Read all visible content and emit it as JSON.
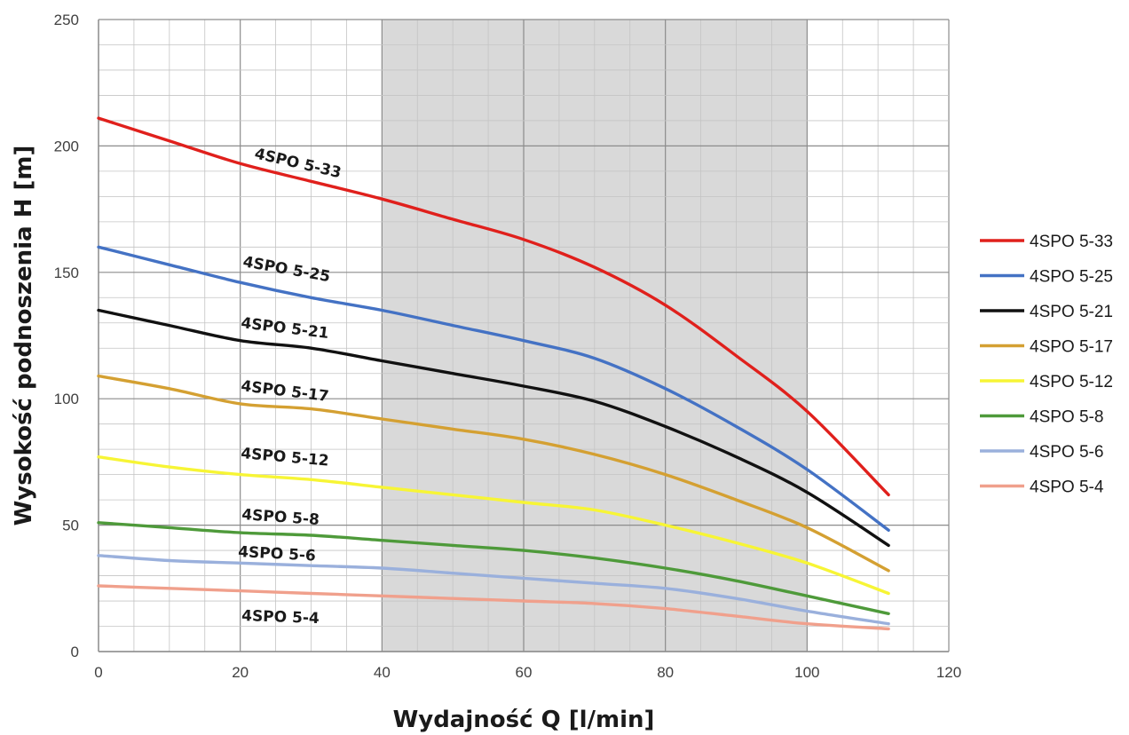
{
  "chart_data": {
    "type": "line",
    "xlabel": "Wydajność Q [l/min]",
    "ylabel": "Wysokość podnoszenia H [m]",
    "xlim": [
      0,
      120
    ],
    "ylim": [
      0,
      250
    ],
    "x_ticks": [
      "0",
      "20",
      "40",
      "60",
      "80",
      "100",
      "120"
    ],
    "y_ticks": [
      "0",
      "50",
      "100",
      "150",
      "200",
      "250"
    ],
    "grid": true,
    "shaded_region_x": [
      40,
      100
    ],
    "shaded_color": "#d9d9d9",
    "legend_position": "right",
    "x": [
      0,
      10,
      20,
      30,
      40,
      50,
      60,
      70,
      80,
      90,
      100,
      111.5
    ],
    "series": [
      {
        "name": "4SPO 5-33",
        "color": "#e0201c",
        "label": "4SPO 5-33",
        "values": [
          211,
          202,
          193,
          186,
          179,
          171,
          163,
          152,
          137,
          117,
          95,
          62
        ]
      },
      {
        "name": "4SPO 5-25",
        "color": "#4472c4",
        "label": "4SPO 5-25",
        "values": [
          160,
          153,
          146,
          140,
          135,
          129,
          123,
          116,
          104,
          89,
          72,
          48
        ]
      },
      {
        "name": "4SPO 5-21",
        "color": "#111111",
        "label": "4SPO 5-21",
        "values": [
          135,
          129,
          123,
          120,
          115,
          110,
          105,
          99,
          89,
          77,
          63,
          42
        ]
      },
      {
        "name": "4SPO 5-17",
        "color": "#d4a032",
        "label": "4SPO 5-17",
        "values": [
          109,
          104,
          98,
          96,
          92,
          88,
          84,
          78,
          70,
          60,
          49,
          32
        ]
      },
      {
        "name": "4SPO 5-12",
        "color": "#f7f535",
        "label": "4SPO 5-12",
        "values": [
          77,
          73,
          70,
          68,
          65,
          62,
          59,
          56,
          50,
          43,
          35,
          23
        ]
      },
      {
        "name": "4SPO 5-8",
        "color": "#4e9a3a",
        "label": "4SPO 5-8",
        "values": [
          51,
          49,
          47,
          46,
          44,
          42,
          40,
          37,
          33,
          28,
          22,
          15
        ]
      },
      {
        "name": "4SPO 5-6",
        "color": "#9ab0dc",
        "label": "4SPO 5-6",
        "values": [
          38,
          36,
          35,
          34,
          33,
          31,
          29,
          27,
          25,
          21,
          16,
          11
        ]
      },
      {
        "name": "4SPO 5-4",
        "color": "#f0a08c",
        "label": "4SPO 5-4",
        "values": [
          26,
          25,
          24,
          23,
          22,
          21,
          20,
          19,
          17,
          14,
          11,
          9
        ]
      }
    ]
  }
}
